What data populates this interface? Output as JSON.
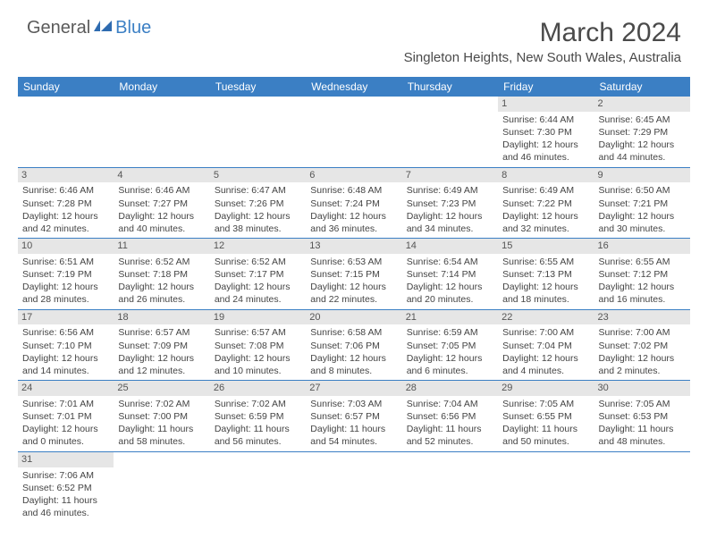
{
  "logo": {
    "dark": "General",
    "blue": "Blue"
  },
  "title": "March 2024",
  "location": "Singleton Heights, New South Wales, Australia",
  "colors": {
    "header_bg": "#3b7fc4",
    "header_fg": "#ffffff",
    "daynum_bg": "#e6e6e6",
    "cell_border": "#3b7fc4",
    "text": "#444444"
  },
  "weekdays": [
    "Sunday",
    "Monday",
    "Tuesday",
    "Wednesday",
    "Thursday",
    "Friday",
    "Saturday"
  ],
  "weeks": [
    [
      null,
      null,
      null,
      null,
      null,
      {
        "n": "1",
        "sr": "Sunrise: 6:44 AM",
        "ss": "Sunset: 7:30 PM",
        "d1": "Daylight: 12 hours",
        "d2": "and 46 minutes."
      },
      {
        "n": "2",
        "sr": "Sunrise: 6:45 AM",
        "ss": "Sunset: 7:29 PM",
        "d1": "Daylight: 12 hours",
        "d2": "and 44 minutes."
      }
    ],
    [
      {
        "n": "3",
        "sr": "Sunrise: 6:46 AM",
        "ss": "Sunset: 7:28 PM",
        "d1": "Daylight: 12 hours",
        "d2": "and 42 minutes."
      },
      {
        "n": "4",
        "sr": "Sunrise: 6:46 AM",
        "ss": "Sunset: 7:27 PM",
        "d1": "Daylight: 12 hours",
        "d2": "and 40 minutes."
      },
      {
        "n": "5",
        "sr": "Sunrise: 6:47 AM",
        "ss": "Sunset: 7:26 PM",
        "d1": "Daylight: 12 hours",
        "d2": "and 38 minutes."
      },
      {
        "n": "6",
        "sr": "Sunrise: 6:48 AM",
        "ss": "Sunset: 7:24 PM",
        "d1": "Daylight: 12 hours",
        "d2": "and 36 minutes."
      },
      {
        "n": "7",
        "sr": "Sunrise: 6:49 AM",
        "ss": "Sunset: 7:23 PM",
        "d1": "Daylight: 12 hours",
        "d2": "and 34 minutes."
      },
      {
        "n": "8",
        "sr": "Sunrise: 6:49 AM",
        "ss": "Sunset: 7:22 PM",
        "d1": "Daylight: 12 hours",
        "d2": "and 32 minutes."
      },
      {
        "n": "9",
        "sr": "Sunrise: 6:50 AM",
        "ss": "Sunset: 7:21 PM",
        "d1": "Daylight: 12 hours",
        "d2": "and 30 minutes."
      }
    ],
    [
      {
        "n": "10",
        "sr": "Sunrise: 6:51 AM",
        "ss": "Sunset: 7:19 PM",
        "d1": "Daylight: 12 hours",
        "d2": "and 28 minutes."
      },
      {
        "n": "11",
        "sr": "Sunrise: 6:52 AM",
        "ss": "Sunset: 7:18 PM",
        "d1": "Daylight: 12 hours",
        "d2": "and 26 minutes."
      },
      {
        "n": "12",
        "sr": "Sunrise: 6:52 AM",
        "ss": "Sunset: 7:17 PM",
        "d1": "Daylight: 12 hours",
        "d2": "and 24 minutes."
      },
      {
        "n": "13",
        "sr": "Sunrise: 6:53 AM",
        "ss": "Sunset: 7:15 PM",
        "d1": "Daylight: 12 hours",
        "d2": "and 22 minutes."
      },
      {
        "n": "14",
        "sr": "Sunrise: 6:54 AM",
        "ss": "Sunset: 7:14 PM",
        "d1": "Daylight: 12 hours",
        "d2": "and 20 minutes."
      },
      {
        "n": "15",
        "sr": "Sunrise: 6:55 AM",
        "ss": "Sunset: 7:13 PM",
        "d1": "Daylight: 12 hours",
        "d2": "and 18 minutes."
      },
      {
        "n": "16",
        "sr": "Sunrise: 6:55 AM",
        "ss": "Sunset: 7:12 PM",
        "d1": "Daylight: 12 hours",
        "d2": "and 16 minutes."
      }
    ],
    [
      {
        "n": "17",
        "sr": "Sunrise: 6:56 AM",
        "ss": "Sunset: 7:10 PM",
        "d1": "Daylight: 12 hours",
        "d2": "and 14 minutes."
      },
      {
        "n": "18",
        "sr": "Sunrise: 6:57 AM",
        "ss": "Sunset: 7:09 PM",
        "d1": "Daylight: 12 hours",
        "d2": "and 12 minutes."
      },
      {
        "n": "19",
        "sr": "Sunrise: 6:57 AM",
        "ss": "Sunset: 7:08 PM",
        "d1": "Daylight: 12 hours",
        "d2": "and 10 minutes."
      },
      {
        "n": "20",
        "sr": "Sunrise: 6:58 AM",
        "ss": "Sunset: 7:06 PM",
        "d1": "Daylight: 12 hours",
        "d2": "and 8 minutes."
      },
      {
        "n": "21",
        "sr": "Sunrise: 6:59 AM",
        "ss": "Sunset: 7:05 PM",
        "d1": "Daylight: 12 hours",
        "d2": "and 6 minutes."
      },
      {
        "n": "22",
        "sr": "Sunrise: 7:00 AM",
        "ss": "Sunset: 7:04 PM",
        "d1": "Daylight: 12 hours",
        "d2": "and 4 minutes."
      },
      {
        "n": "23",
        "sr": "Sunrise: 7:00 AM",
        "ss": "Sunset: 7:02 PM",
        "d1": "Daylight: 12 hours",
        "d2": "and 2 minutes."
      }
    ],
    [
      {
        "n": "24",
        "sr": "Sunrise: 7:01 AM",
        "ss": "Sunset: 7:01 PM",
        "d1": "Daylight: 12 hours",
        "d2": "and 0 minutes."
      },
      {
        "n": "25",
        "sr": "Sunrise: 7:02 AM",
        "ss": "Sunset: 7:00 PM",
        "d1": "Daylight: 11 hours",
        "d2": "and 58 minutes."
      },
      {
        "n": "26",
        "sr": "Sunrise: 7:02 AM",
        "ss": "Sunset: 6:59 PM",
        "d1": "Daylight: 11 hours",
        "d2": "and 56 minutes."
      },
      {
        "n": "27",
        "sr": "Sunrise: 7:03 AM",
        "ss": "Sunset: 6:57 PM",
        "d1": "Daylight: 11 hours",
        "d2": "and 54 minutes."
      },
      {
        "n": "28",
        "sr": "Sunrise: 7:04 AM",
        "ss": "Sunset: 6:56 PM",
        "d1": "Daylight: 11 hours",
        "d2": "and 52 minutes."
      },
      {
        "n": "29",
        "sr": "Sunrise: 7:05 AM",
        "ss": "Sunset: 6:55 PM",
        "d1": "Daylight: 11 hours",
        "d2": "and 50 minutes."
      },
      {
        "n": "30",
        "sr": "Sunrise: 7:05 AM",
        "ss": "Sunset: 6:53 PM",
        "d1": "Daylight: 11 hours",
        "d2": "and 48 minutes."
      }
    ],
    [
      {
        "n": "31",
        "sr": "Sunrise: 7:06 AM",
        "ss": "Sunset: 6:52 PM",
        "d1": "Daylight: 11 hours",
        "d2": "and 46 minutes."
      },
      null,
      null,
      null,
      null,
      null,
      null
    ]
  ]
}
